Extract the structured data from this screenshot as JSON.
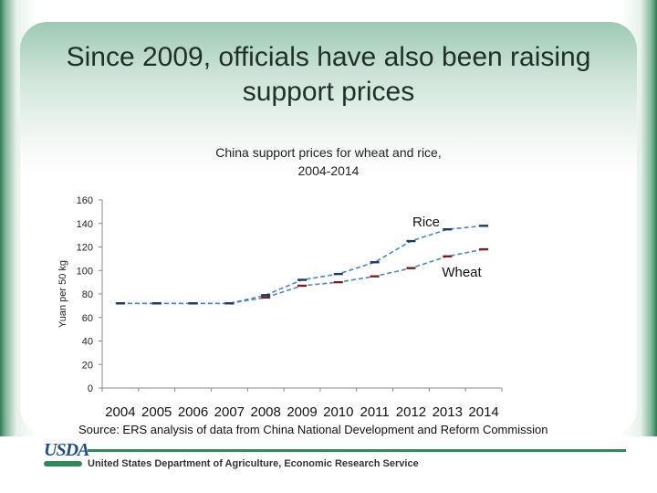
{
  "slide": {
    "title": "Since 2009, officials have also been raising support prices",
    "source": "Source: ERS analysis of data from China National Development and Reform Commission"
  },
  "footer": {
    "logo_text": "USDA",
    "agency": "United States Department of Agriculture, Economic Research Service"
  },
  "chart_data": {
    "type": "line",
    "title": "China support prices for wheat and rice,",
    "subtitle": "2004-2014",
    "ylabel": "Yuan per 50 kg",
    "xlabel": "",
    "x": [
      "2004",
      "2005",
      "2006",
      "2007",
      "2008",
      "2009",
      "2010",
      "2011",
      "2012",
      "2013",
      "2014"
    ],
    "ylim": [
      0,
      160
    ],
    "yticks": [
      0,
      20,
      40,
      60,
      80,
      100,
      120,
      140,
      160
    ],
    "grid": false,
    "legend": "inline labels",
    "series": [
      {
        "name": "Rice",
        "color": "#1f3864",
        "values": [
          72,
          72,
          72,
          72,
          79,
          92,
          97,
          107,
          125,
          135,
          138
        ]
      },
      {
        "name": "Wheat",
        "color": "#7b1f1f",
        "values": [
          72,
          72,
          72,
          72,
          77,
          87,
          90,
          95,
          102,
          112,
          118
        ]
      }
    ],
    "line_color": "#4a86c0"
  }
}
